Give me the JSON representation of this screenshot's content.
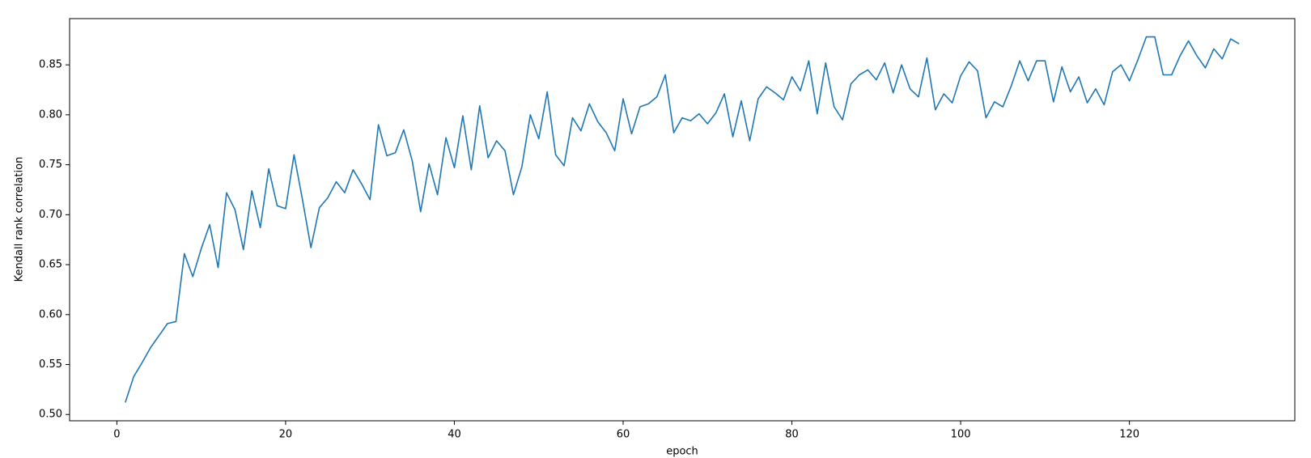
{
  "chart_data": {
    "type": "line",
    "xlabel": "epoch",
    "ylabel": "Kendall rank correlation",
    "x": [
      1,
      2,
      3,
      4,
      5,
      6,
      7,
      8,
      9,
      10,
      11,
      12,
      13,
      14,
      15,
      16,
      17,
      18,
      19,
      20,
      21,
      22,
      23,
      24,
      25,
      26,
      27,
      28,
      29,
      30,
      31,
      32,
      33,
      34,
      35,
      36,
      37,
      38,
      39,
      40,
      41,
      42,
      43,
      44,
      45,
      46,
      47,
      48,
      49,
      50,
      51,
      52,
      53,
      54,
      55,
      56,
      57,
      58,
      59,
      60,
      61,
      62,
      63,
      64,
      65,
      66,
      67,
      68,
      69,
      70,
      71,
      72,
      73,
      74,
      75,
      76,
      77,
      78,
      79,
      80,
      81,
      82,
      83,
      84,
      85,
      86,
      87,
      88,
      89,
      90,
      91,
      92,
      93,
      94,
      95,
      96,
      97,
      98,
      99,
      100,
      101,
      102,
      103,
      104,
      105,
      106,
      107,
      108,
      109,
      110,
      111,
      112,
      113,
      114,
      115,
      116,
      117,
      118,
      119,
      120,
      121,
      122,
      123,
      124,
      125,
      126,
      127,
      128,
      129,
      130,
      131,
      132,
      133
    ],
    "series": [
      {
        "color": "#1f77b4",
        "values": [
          0.512,
          0.538,
          0.552,
          0.567,
          0.579,
          0.591,
          0.593,
          0.661,
          0.638,
          0.666,
          0.69,
          0.647,
          0.722,
          0.705,
          0.665,
          0.724,
          0.687,
          0.746,
          0.709,
          0.706,
          0.76,
          0.715,
          0.667,
          0.707,
          0.717,
          0.733,
          0.722,
          0.745,
          0.731,
          0.715,
          0.79,
          0.759,
          0.762,
          0.785,
          0.754,
          0.703,
          0.751,
          0.72,
          0.777,
          0.747,
          0.799,
          0.745,
          0.809,
          0.757,
          0.774,
          0.764,
          0.72,
          0.748,
          0.8,
          0.776,
          0.823,
          0.76,
          0.749,
          0.797,
          0.784,
          0.811,
          0.793,
          0.782,
          0.764,
          0.816,
          0.781,
          0.808,
          0.811,
          0.818,
          0.84,
          0.782,
          0.797,
          0.794,
          0.801,
          0.791,
          0.802,
          0.821,
          0.778,
          0.814,
          0.774,
          0.816,
          0.828,
          0.822,
          0.815,
          0.838,
          0.824,
          0.854,
          0.801,
          0.852,
          0.808,
          0.795,
          0.831,
          0.84,
          0.845,
          0.835,
          0.852,
          0.822,
          0.85,
          0.826,
          0.818,
          0.857,
          0.805,
          0.821,
          0.812,
          0.839,
          0.853,
          0.844,
          0.797,
          0.813,
          0.808,
          0.829,
          0.854,
          0.834,
          0.854,
          0.854,
          0.813,
          0.848,
          0.823,
          0.838,
          0.812,
          0.826,
          0.81,
          0.843,
          0.85,
          0.834,
          0.855,
          0.878,
          0.878,
          0.84,
          0.84,
          0.859,
          0.874,
          0.859,
          0.847,
          0.866,
          0.856,
          0.876,
          0.871
        ]
      }
    ],
    "xlim": [
      -5.6,
      139.6
    ],
    "ylim": [
      0.4937,
      0.8963
    ],
    "xticks": [
      0,
      20,
      40,
      60,
      80,
      100,
      120
    ],
    "yticks": [
      {
        "value": 0.5,
        "label": "0.50"
      },
      {
        "value": 0.55,
        "label": "0.55"
      },
      {
        "value": 0.6,
        "label": "0.60"
      },
      {
        "value": 0.65,
        "label": "0.65"
      },
      {
        "value": 0.7,
        "label": "0.70"
      },
      {
        "value": 0.75,
        "label": "0.75"
      },
      {
        "value": 0.8,
        "label": "0.80"
      },
      {
        "value": 0.85,
        "label": "0.85"
      }
    ],
    "grid": false
  }
}
